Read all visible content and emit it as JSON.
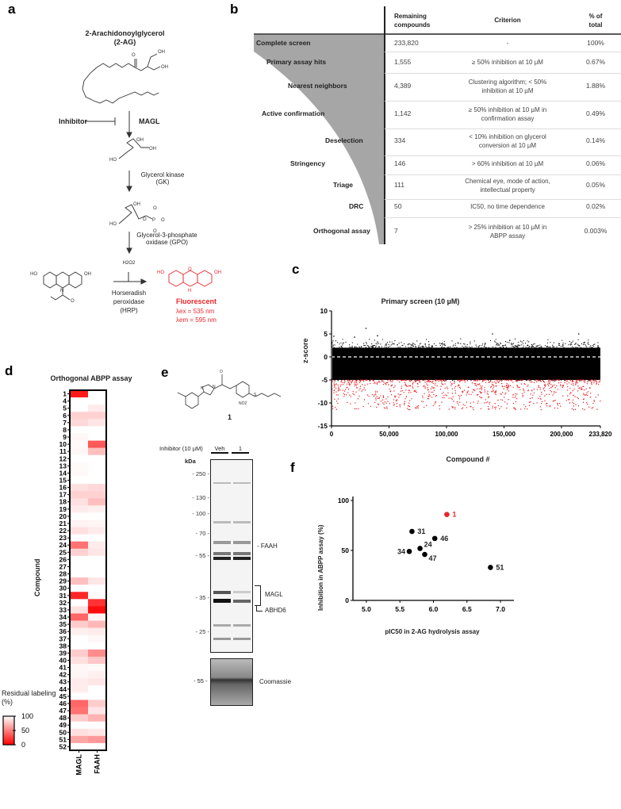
{
  "panels": {
    "a": "a",
    "b": "b",
    "c": "c",
    "d": "d",
    "e": "e",
    "f": "f"
  },
  "panel_a": {
    "substrate": "2-Arachidonoylglycerol",
    "substrate_abbr": "(2-AG)",
    "inhibitor": "Inhibitor",
    "enzyme1": "MAGL",
    "enzyme2_l1": "Glycerol kinase",
    "enzyme2_l2": "(GK)",
    "enzyme3_l1": "Glycerol-3-phosphate",
    "enzyme3_l2": "oxidase (GPO)",
    "cofactor": "H2O2",
    "enzyme4_l1": "Horseradish",
    "enzyme4_l2": "peroxidase",
    "enzyme4_l3": "(HRP)",
    "product": "Fluorescent",
    "lambda_ex": "λex = 535 nm",
    "lambda_em": "λem = 595 nm",
    "atoms": {
      "oh": "OH",
      "ho": "HO",
      "o": "O",
      "p": "P",
      "n": "N",
      "h": "H"
    },
    "product_color": "#e8262b"
  },
  "panel_b": {
    "headers": {
      "remaining": "Remaining compounds",
      "criterion": "Criterion",
      "percent": "% of total"
    },
    "rows": [
      {
        "stage": "Complete screen",
        "remaining": "233,820",
        "criterion": "-",
        "percent": "100%"
      },
      {
        "stage": "Primary assay hits",
        "remaining": "1,555",
        "criterion": "≥ 50% inhibition at 10 µM",
        "percent": "0.67%"
      },
      {
        "stage": "Nearest neighbors",
        "remaining": "4,389",
        "criterion": "Clustering algorithm; < 50% inhibition at 10 µM",
        "percent": "1.88%"
      },
      {
        "stage": "Active confirmation",
        "remaining": "1,142",
        "criterion": "≥ 50% inhibition at 10 µM in confirmation assay",
        "percent": "0.49%"
      },
      {
        "stage": "Deselection",
        "remaining": "334",
        "criterion": "< 10% inhibition on glycerol conversion at 10 µM",
        "percent": "0.14%"
      },
      {
        "stage": "Stringency",
        "remaining": "146",
        "criterion": "> 60% inhibition at 10 µM",
        "percent": "0.06%"
      },
      {
        "stage": "Triage",
        "remaining": "111",
        "criterion": "Chemical eye, mode of action, intellectual property",
        "percent": "0.05%"
      },
      {
        "stage": "DRC",
        "remaining": "50",
        "criterion": "IC50, no time dependence",
        "percent": "0.02%"
      },
      {
        "stage": "Orthogonal assay",
        "remaining": "7",
        "criterion": "> 25% inhibition at 10 µM in ABPP assay",
        "percent": "0.003%"
      }
    ],
    "funnel_color": "#a6a6a6"
  },
  "chart_data": [
    {
      "panel": "c",
      "type": "scatter",
      "title": "Primary screen (10 µM)",
      "xlabel": "Compound #",
      "ylabel": "z-score",
      "xlim": [
        0,
        233820
      ],
      "ylim": [
        -15,
        10
      ],
      "xticks": [
        "0",
        "50,000",
        "100,000",
        "150,000",
        "200,000",
        "233,820"
      ],
      "xtick_values": [
        0,
        50000,
        100000,
        150000,
        200000,
        233820
      ],
      "yticks": [
        "10",
        "5",
        "0",
        "-5",
        "-10",
        "-15"
      ],
      "ytick_values": [
        10,
        5,
        0,
        -5,
        -10,
        -15
      ],
      "reference_line": {
        "y": 0,
        "style": "dashed",
        "color": "#ffffff"
      },
      "series": [
        {
          "color": "#000000",
          "range": [
            -5,
            2
          ]
        },
        {
          "color": "#e8262b",
          "range": [
            -12.5,
            -5
          ]
        }
      ],
      "outliers": [
        [
          2000,
          4.5
        ],
        [
          20000,
          4.3
        ],
        [
          30000,
          6.2
        ],
        [
          40000,
          4.6
        ],
        [
          140000,
          5.0
        ],
        [
          215000,
          5.0
        ],
        [
          155000,
          3.6
        ]
      ]
    },
    {
      "panel": "d",
      "type": "heatmap",
      "title": "Orthogonal ABPP assay",
      "ylabel": "Compound",
      "columns": [
        "MAGL",
        "FAAH"
      ],
      "rows": [
        "1",
        "4",
        "5",
        "6",
        "7",
        "8",
        "9",
        "10",
        "11",
        "12",
        "13",
        "14",
        "15",
        "16",
        "17",
        "18",
        "19",
        "20",
        "21",
        "22",
        "23",
        "24",
        "25",
        "26",
        "27",
        "28",
        "29",
        "30",
        "31",
        "32",
        "33",
        "34",
        "35",
        "36",
        "37",
        "38",
        "39",
        "40",
        "41",
        "42",
        "43",
        "44",
        "45",
        "46",
        "47",
        "48",
        "49",
        "50",
        "51",
        "52"
      ],
      "values": [
        [
          10,
          100
        ],
        [
          100,
          100
        ],
        [
          100,
          92
        ],
        [
          82,
          82
        ],
        [
          85,
          90
        ],
        [
          100,
          100
        ],
        [
          97,
          100
        ],
        [
          98,
          35
        ],
        [
          97,
          75
        ],
        [
          100,
          100
        ],
        [
          98,
          100
        ],
        [
          98,
          100
        ],
        [
          100,
          100
        ],
        [
          88,
          85
        ],
        [
          82,
          82
        ],
        [
          88,
          75
        ],
        [
          92,
          94
        ],
        [
          100,
          100
        ],
        [
          95,
          96
        ],
        [
          88,
          92
        ],
        [
          100,
          100
        ],
        [
          45,
          92
        ],
        [
          82,
          90
        ],
        [
          100,
          100
        ],
        [
          100,
          100
        ],
        [
          100,
          100
        ],
        [
          75,
          90
        ],
        [
          100,
          100
        ],
        [
          15,
          98
        ],
        [
          100,
          20
        ],
        [
          88,
          5
        ],
        [
          40,
          96
        ],
        [
          80,
          72
        ],
        [
          94,
          92
        ],
        [
          100,
          97
        ],
        [
          100,
          100
        ],
        [
          80,
          55
        ],
        [
          88,
          78
        ],
        [
          97,
          98
        ],
        [
          96,
          94
        ],
        [
          92,
          90
        ],
        [
          93,
          100
        ],
        [
          100,
          100
        ],
        [
          40,
          80
        ],
        [
          45,
          90
        ],
        [
          80,
          70
        ],
        [
          100,
          100
        ],
        [
          88,
          90
        ],
        [
          65,
          60
        ],
        [
          100,
          100
        ]
      ],
      "colorbar": {
        "label": "Residual labeling (%)",
        "ticks": [
          "100",
          "50",
          "0"
        ],
        "min_color": "#ff0000",
        "max_color": "#ffffff"
      }
    },
    {
      "panel": "f",
      "type": "scatter",
      "xlabel": "pIC50 in 2-AG hydrolysis assay",
      "ylabel": "Inhibition in ABPP assay (%)",
      "xlim": [
        4.8,
        7.2
      ],
      "ylim": [
        0,
        100
      ],
      "xticks": [
        "5.0",
        "5.5",
        "6.0",
        "6.5",
        "7.0"
      ],
      "yticks": [
        "0",
        "50",
        "100"
      ],
      "points": [
        {
          "label": "1",
          "x": 6.2,
          "y": 86,
          "color": "#e8262b"
        },
        {
          "label": "31",
          "x": 5.68,
          "y": 69,
          "color": "#000000"
        },
        {
          "label": "46",
          "x": 6.02,
          "y": 62,
          "color": "#000000"
        },
        {
          "label": "24",
          "x": 5.8,
          "y": 52,
          "color": "#000000"
        },
        {
          "label": "34",
          "x": 5.64,
          "y": 49,
          "color": "#000000"
        },
        {
          "label": "47",
          "x": 5.87,
          "y": 46,
          "color": "#000000"
        },
        {
          "label": "51",
          "x": 6.85,
          "y": 33,
          "color": "#000000"
        }
      ]
    }
  ],
  "panel_e": {
    "compound_label": "1",
    "inhibitor_label": "Inhibitor (10 µM)",
    "lanes": [
      "Veh",
      "1"
    ],
    "kda": "kDa",
    "markers": [
      "250",
      "130",
      "100",
      "70",
      "55",
      "35",
      "25"
    ],
    "coomassie_marker": "55",
    "bands": {
      "faah": "FAAH",
      "magl": "MAGL",
      "abhd6": "ABHD6",
      "coomassie": "Coomassie"
    },
    "atoms": {
      "n": "N",
      "o": "O",
      "s": "S",
      "no2": "NO2"
    }
  }
}
